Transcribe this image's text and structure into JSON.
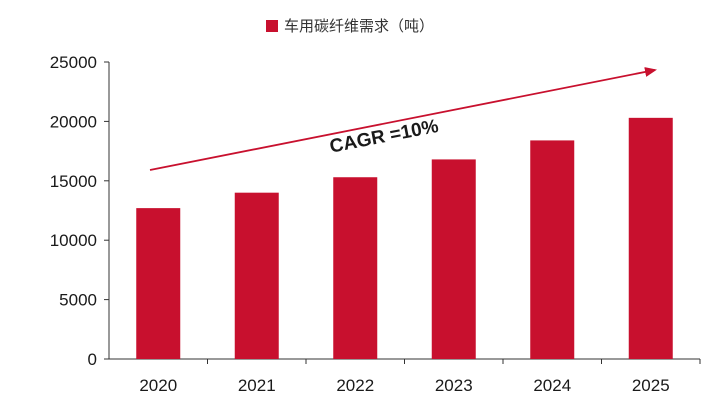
{
  "chart_data": {
    "type": "bar",
    "categories": [
      "2020",
      "2021",
      "2022",
      "2023",
      "2024",
      "2025"
    ],
    "series": [
      {
        "name": "车用碳纤维需求（吨）",
        "values": [
          12700,
          14000,
          15300,
          16800,
          18400,
          20300
        ],
        "color": "#c8102e"
      }
    ],
    "ylim": [
      0,
      25000
    ],
    "yticks": [
      0,
      5000,
      10000,
      15000,
      20000,
      25000
    ],
    "grid": false,
    "legend": "top-center",
    "annotation": {
      "text": "CAGR =10%",
      "color": "#c8102e"
    }
  }
}
